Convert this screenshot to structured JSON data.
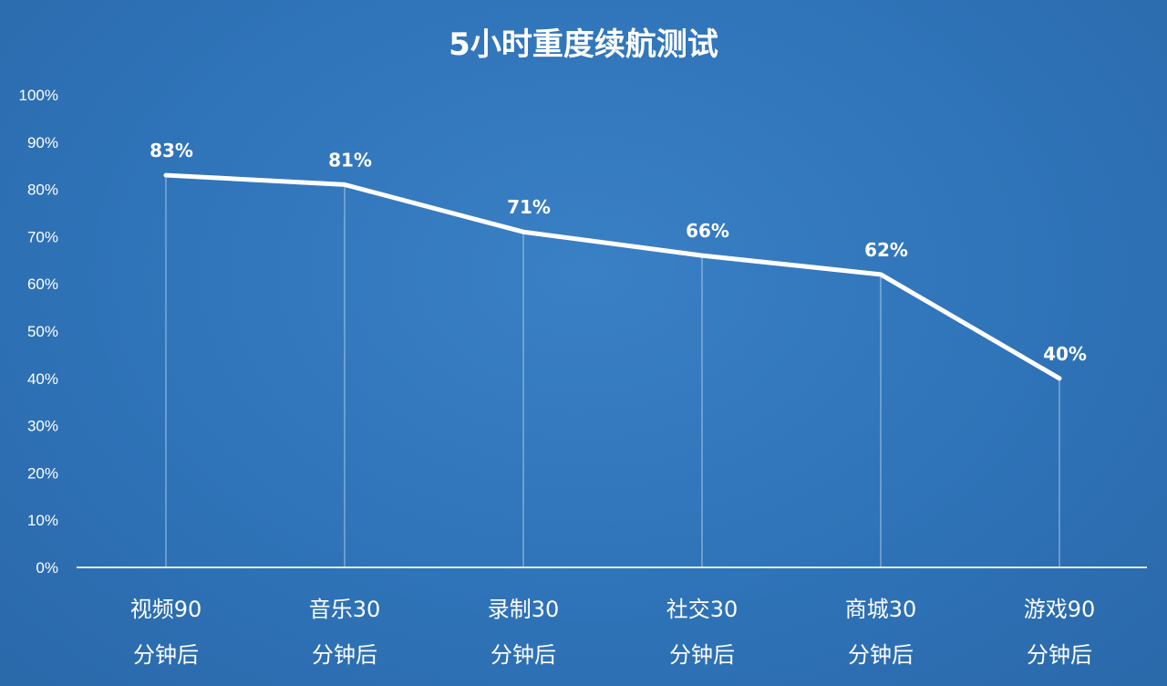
{
  "chart_data": {
    "type": "line",
    "title": "5小时重度续航测试",
    "xlabel": "",
    "ylabel": "",
    "categories": [
      [
        "视频90",
        "分钟后"
      ],
      [
        "音乐30",
        "分钟后"
      ],
      [
        "录制30",
        "分钟后"
      ],
      [
        "社交30",
        "分钟后"
      ],
      [
        "商城30",
        "分钟后"
      ],
      [
        "游戏90",
        "分钟后"
      ]
    ],
    "values": [
      83,
      81,
      71,
      66,
      62,
      40
    ],
    "data_labels": [
      "83%",
      "81%",
      "71%",
      "66%",
      "62%",
      "40%"
    ],
    "y_ticks": [
      "0%",
      "10%",
      "20%",
      "30%",
      "40%",
      "50%",
      "60%",
      "70%",
      "80%",
      "90%",
      "100%"
    ],
    "ylim": [
      0,
      100
    ],
    "grid": false,
    "legend": "none",
    "colors": {
      "background": "#2f73b8",
      "line": "#ffffff",
      "drop_lines": "#cfe0f2",
      "text": "#ffffff"
    }
  }
}
